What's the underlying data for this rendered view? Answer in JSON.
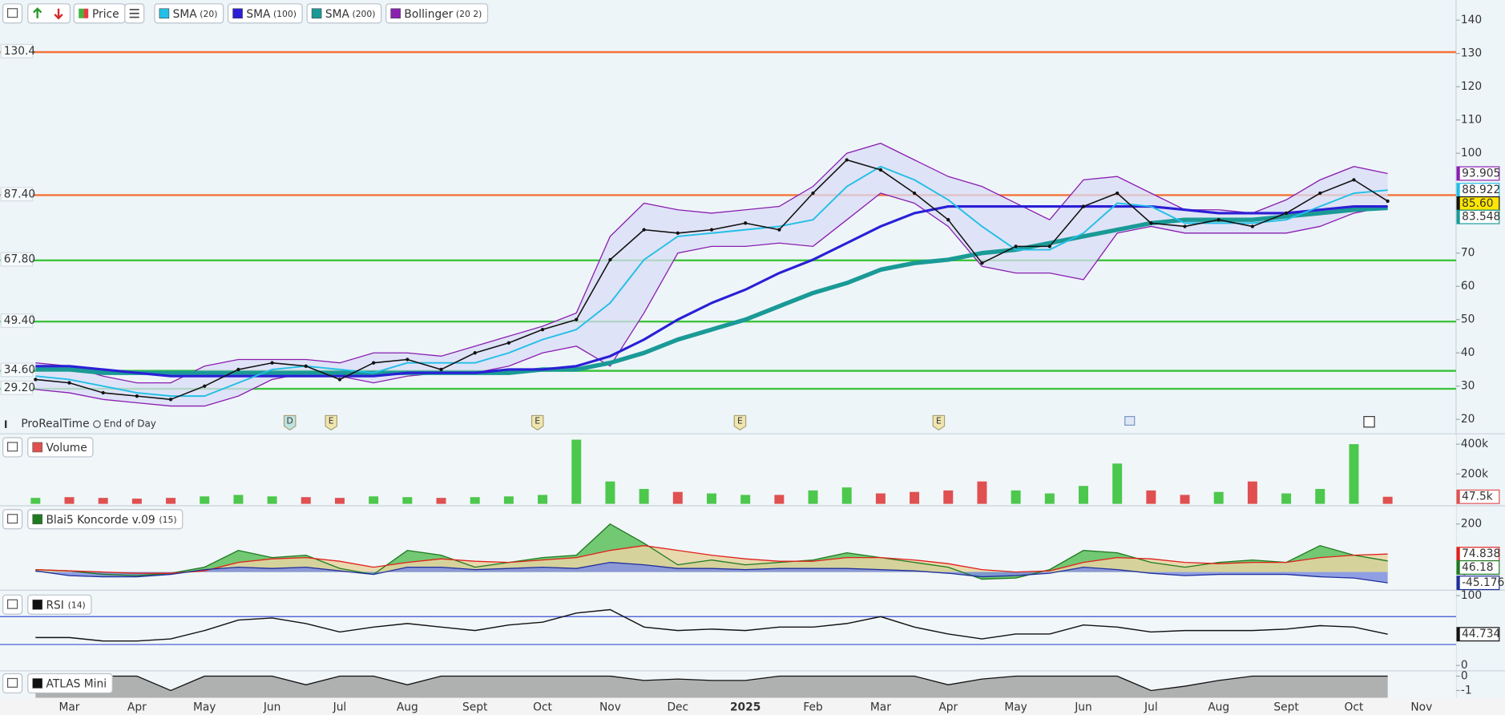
{
  "chart_data": [
    {
      "type": "line",
      "source": "ProRealTime",
      "mode": "End of Day",
      "events": [
        "D",
        "E",
        "E",
        "E",
        "E"
      ],
      "categories": [
        null,
        "Mar",
        null,
        "Apr",
        null,
        "May",
        null,
        "Jun",
        null,
        "Jul",
        null,
        "Aug",
        null,
        "Sept",
        null,
        "Oct",
        null,
        "Nov",
        null,
        "Dec",
        null,
        "2025",
        null,
        "Feb",
        null,
        "Mar",
        null,
        "Apr",
        null,
        "May",
        null,
        "Jun",
        null,
        "Jul",
        null,
        "Aug",
        null,
        "Sept",
        null,
        "Oct",
        null,
        "Nov"
      ],
      "ylim": [
        20,
        140
      ],
      "yticks": [
        20,
        30,
        40,
        50,
        60,
        70,
        100,
        110,
        120,
        130,
        140
      ],
      "levels": [
        {
          "value": 130.4,
          "label": "130.4",
          "color": "#f4733a"
        },
        {
          "value": 87.4,
          "label": "87.40",
          "color": "#f4733a"
        },
        {
          "value": 67.8,
          "label": "67.80",
          "color": "#3cc43c"
        },
        {
          "value": 49.4,
          "label": "49.40",
          "color": "#3cc43c"
        },
        {
          "value": 34.6,
          "label": "34.60",
          "color": "#3cc43c"
        },
        {
          "value": 29.2,
          "label": "29.20",
          "color": "#3cc43c"
        }
      ],
      "series": [
        {
          "name": "Price",
          "color": "#111111",
          "line_width": 1.3,
          "label_fill": "#ffe600",
          "last_label": "85.60",
          "values": [
            32,
            31,
            28,
            27,
            26,
            30,
            35,
            37,
            36,
            32,
            37,
            38,
            35,
            40,
            43,
            47,
            50,
            68,
            77,
            76,
            77,
            79,
            77,
            88,
            98,
            95,
            88,
            80,
            67,
            72,
            72,
            84,
            88,
            79,
            78,
            80,
            78,
            82,
            88,
            92,
            85.6,
            null
          ]
        },
        {
          "name": "SMA",
          "params": "(20)",
          "color": "#22bfe6",
          "line_width": 1.6,
          "last_label": "88.922",
          "values": [
            33,
            32,
            30,
            28,
            27,
            27,
            31,
            35,
            36,
            35,
            34,
            37,
            37,
            37,
            40,
            44,
            47,
            55,
            68,
            75,
            76,
            77,
            78,
            80,
            90,
            96,
            92,
            86,
            78,
            71,
            71,
            76,
            85,
            84,
            79,
            79,
            79,
            80,
            84,
            88,
            88.922,
            null
          ]
        },
        {
          "name": "SMA",
          "params": "(100)",
          "color": "#2a1fd6",
          "line_width": 2.6,
          "values": [
            36,
            36,
            35,
            34,
            33,
            33,
            33,
            33,
            33,
            33,
            33,
            34,
            34,
            34,
            35,
            35,
            36,
            39,
            44,
            50,
            55,
            59,
            64,
            68,
            73,
            78,
            82,
            84,
            84,
            84,
            84,
            84,
            84,
            84,
            83,
            82,
            82,
            82,
            83,
            84,
            84,
            null
          ]
        },
        {
          "name": "SMA",
          "params": "(200)",
          "color": "#1a9a96",
          "line_width": 4.5,
          "last_label": "83.548",
          "values": [
            35,
            35,
            34,
            34,
            34,
            34,
            34,
            34,
            34,
            34,
            34,
            34,
            34,
            34,
            34,
            35,
            35,
            37,
            40,
            44,
            47,
            50,
            54,
            58,
            61,
            65,
            67,
            68,
            70,
            71,
            73,
            75,
            77,
            79,
            80,
            80,
            80,
            81,
            82,
            83,
            83.548,
            null
          ]
        },
        {
          "name": "Bollinger",
          "params": "(20 2)",
          "color": "#8a1fb0",
          "line_width": 1.1,
          "last_label": "93.905",
          "upper": [
            37,
            36,
            33,
            31,
            31,
            36,
            38,
            38,
            38,
            37,
            40,
            40,
            39,
            42,
            45,
            48,
            52,
            75,
            85,
            83,
            82,
            83,
            84,
            90,
            100,
            103,
            98,
            93,
            90,
            85,
            80,
            92,
            93,
            88,
            83,
            83,
            82,
            86,
            92,
            96,
            93.905,
            null
          ],
          "lower": [
            29,
            28,
            26,
            25,
            24,
            24,
            27,
            32,
            34,
            33,
            31,
            33,
            34,
            34,
            36,
            40,
            42,
            36,
            52,
            70,
            72,
            72,
            73,
            72,
            80,
            88,
            85,
            78,
            66,
            64,
            64,
            62,
            76,
            78,
            76,
            76,
            76,
            76,
            78,
            82,
            84,
            null
          ]
        }
      ]
    },
    {
      "type": "bar",
      "title": "Volume",
      "ylim": [
        0,
        450000
      ],
      "yticks": [
        {
          "value": 200000,
          "label": "200k"
        },
        {
          "value": 400000,
          "label": "400k"
        }
      ],
      "up_color": "#4cc84c",
      "down_color": "#e05050",
      "series": [
        {
          "color": "#e05050",
          "last_label": "47.5k",
          "values": [
            40000,
            45000,
            40000,
            35000,
            40000,
            50000,
            60000,
            50000,
            45000,
            40000,
            50000,
            45000,
            40000,
            45000,
            50000,
            60000,
            430000,
            150000,
            100000,
            80000,
            70000,
            60000,
            60000,
            90000,
            110000,
            70000,
            80000,
            90000,
            150000,
            90000,
            70000,
            120000,
            270000,
            90000,
            60000,
            80000,
            150000,
            70000,
            100000,
            400000,
            47500,
            null
          ]
        }
      ]
    },
    {
      "type": "area",
      "title": "Blai5 Koncorde v.09",
      "params": "(15)",
      "ylim": [
        -68,
        264
      ],
      "yticks": [
        200,
        0
      ],
      "series": [
        {
          "color": "#1f7a1f",
          "fill": "#5cbf5c",
          "last_label": "46.18",
          "values": [
            10,
            5,
            -10,
            -15,
            -5,
            20,
            90,
            60,
            70,
            15,
            -10,
            90,
            70,
            20,
            40,
            60,
            70,
            200,
            120,
            30,
            50,
            30,
            40,
            50,
            80,
            60,
            40,
            20,
            -30,
            -25,
            10,
            90,
            80,
            40,
            20,
            40,
            50,
            40,
            110,
            70,
            46.18,
            null
          ]
        },
        {
          "color": "#e0201b",
          "fill": "#e8d4a2",
          "last_label": "74.838",
          "values": [
            10,
            5,
            0,
            -5,
            -5,
            5,
            40,
            55,
            60,
            45,
            20,
            40,
            55,
            45,
            40,
            50,
            60,
            90,
            110,
            90,
            70,
            55,
            45,
            45,
            60,
            60,
            50,
            35,
            10,
            0,
            5,
            40,
            60,
            55,
            40,
            35,
            40,
            40,
            60,
            70,
            74.838,
            null
          ]
        },
        {
          "color": "#1f2f9a",
          "fill": "#7f8fe0",
          "last_label": "-45.176",
          "values": [
            5,
            -15,
            -20,
            -20,
            -10,
            10,
            20,
            15,
            20,
            5,
            -10,
            20,
            20,
            10,
            15,
            20,
            15,
            40,
            30,
            15,
            15,
            10,
            15,
            15,
            15,
            10,
            5,
            -5,
            -20,
            -15,
            -5,
            20,
            10,
            -5,
            -15,
            -10,
            -10,
            -10,
            -20,
            -25,
            -45.176,
            null
          ]
        }
      ]
    },
    {
      "type": "line",
      "title": "RSI",
      "params": "(14)",
      "ylim": [
        -5,
        105
      ],
      "yticks": [
        100,
        0
      ],
      "levels": [
        {
          "value": 70,
          "color": "#3a4fd0"
        },
        {
          "value": 30,
          "color": "#3a4fd0"
        }
      ],
      "series": [
        {
          "color": "#111111",
          "line_width": 1.2,
          "last_label": "44.734",
          "values": [
            40,
            40,
            35,
            35,
            38,
            50,
            65,
            68,
            60,
            48,
            55,
            60,
            55,
            50,
            58,
            62,
            75,
            80,
            55,
            50,
            52,
            50,
            55,
            55,
            60,
            70,
            55,
            45,
            38,
            45,
            45,
            58,
            55,
            48,
            50,
            50,
            50,
            52,
            57,
            55,
            44.734,
            null
          ]
        }
      ]
    },
    {
      "type": "area",
      "title": "ATLAS Mini",
      "ylim": [
        -1.5,
        0.3
      ],
      "yticks": [
        0,
        -1
      ],
      "fill_to": "bottom",
      "series": [
        {
          "color": "#111111",
          "fill": "#a3a3a3",
          "values": [
            0,
            0,
            0,
            0,
            -1,
            0,
            0,
            0,
            -0.6,
            0,
            0,
            -0.6,
            0,
            0,
            0,
            0,
            0,
            0,
            -0.3,
            -0.2,
            -0.3,
            -0.3,
            0,
            0,
            0,
            0,
            0,
            -0.6,
            -0.2,
            0,
            0,
            0,
            0,
            -1,
            -0.7,
            -0.3,
            0,
            0,
            0,
            0,
            0,
            null
          ]
        }
      ]
    }
  ]
}
